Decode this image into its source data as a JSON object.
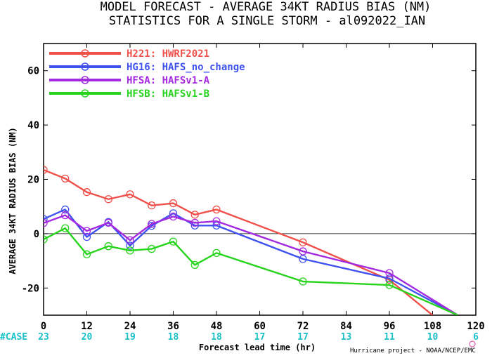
{
  "header": {
    "title_line1": "MODEL FORECAST - AVERAGE 34KT RADIUS BIAS (NM)",
    "title_line2": "STATISTICS FOR A SINGLE STORM - al092022_IAN"
  },
  "credit": "Hurricane project - NOAA/NCEP/EMC",
  "case_label": "#CASE",
  "chart_data": {
    "type": "line",
    "title": "MODEL FORECAST - AVERAGE 34KT RADIUS BIAS (NM)",
    "subtitle": "STATISTICS FOR A SINGLE STORM - al092022_IAN",
    "xlabel": "Forecast lead time (hr)",
    "ylabel": "AVERAGE 34KT RADIUS BIAS (NM)",
    "xlim": [
      0,
      120
    ],
    "ylim": [
      -30,
      70
    ],
    "xticks": [
      0,
      12,
      24,
      36,
      48,
      60,
      72,
      84,
      96,
      108,
      120
    ],
    "yticks": [
      -20,
      0,
      20,
      40,
      60
    ],
    "zero_line": true,
    "legend_position": "top-left",
    "case_counts": [
      {
        "x": 0,
        "label": "23"
      },
      {
        "x": 12,
        "label": "20"
      },
      {
        "x": 24,
        "label": "19"
      },
      {
        "x": 36,
        "label": "18"
      },
      {
        "x": 48,
        "label": "18"
      },
      {
        "x": 60,
        "label": "17"
      },
      {
        "x": 72,
        "label": "17"
      },
      {
        "x": 84,
        "label": "13"
      },
      {
        "x": 96,
        "label": "11"
      },
      {
        "x": 108,
        "label": "10"
      },
      {
        "x": 120,
        "label": "6"
      }
    ],
    "series": [
      {
        "name": "H221",
        "desc": "HWRF2021",
        "color": "#f0504a",
        "x": [
          0,
          6,
          12,
          18,
          24,
          30,
          36,
          42,
          48,
          72,
          96,
          108
        ],
        "y": [
          23.5,
          20.3,
          15.3,
          12.7,
          14.5,
          10.4,
          11.2,
          7.0,
          8.9,
          -3.2,
          -17.0,
          -30.0
        ]
      },
      {
        "name": "HG16",
        "desc": "HAFS_no_change",
        "color": "#3f52f0",
        "x": [
          0,
          6,
          12,
          18,
          24,
          30,
          36,
          42,
          48,
          72,
          96,
          115
        ],
        "y": [
          5.4,
          8.9,
          -1.2,
          4.3,
          -4.4,
          2.9,
          7.5,
          3.0,
          3.0,
          -9.3,
          -16.5,
          -30.0
        ]
      },
      {
        "name": "HFSA",
        "desc": "HAFSv1-A",
        "color": "#a42ae0",
        "x": [
          0,
          6,
          12,
          18,
          24,
          30,
          36,
          42,
          48,
          72,
          96,
          115
        ],
        "y": [
          3.9,
          6.8,
          1.0,
          4.0,
          -2.4,
          3.6,
          6.3,
          4.0,
          4.6,
          -6.5,
          -14.5,
          -30.0
        ]
      },
      {
        "name": "HFSB",
        "desc": "HAFSv1-B",
        "color": "#26d41c",
        "x": [
          0,
          6,
          12,
          18,
          24,
          30,
          36,
          42,
          48,
          72,
          96,
          115
        ],
        "y": [
          -2.1,
          2.0,
          -7.6,
          -4.6,
          -6.2,
          -5.6,
          -2.9,
          -11.5,
          -7.1,
          -17.6,
          -18.9,
          -30.0
        ]
      }
    ]
  }
}
